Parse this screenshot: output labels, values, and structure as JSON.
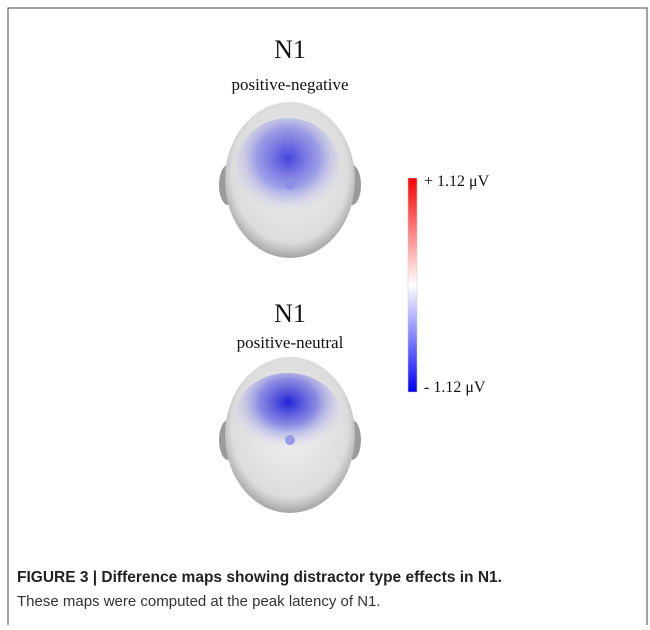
{
  "panels": [
    {
      "title": "N1",
      "subtitle": "positive-negative"
    },
    {
      "title": "N1",
      "subtitle": "positive-neutral"
    }
  ],
  "colorbar": {
    "max_label": "+ 1.12 μV",
    "min_label": "- 1.12 μV"
  },
  "caption": {
    "label": "FIGURE 3 | Difference maps showing distractor type effects in N1.",
    "text": "These maps were computed at the peak latency of N1."
  }
}
